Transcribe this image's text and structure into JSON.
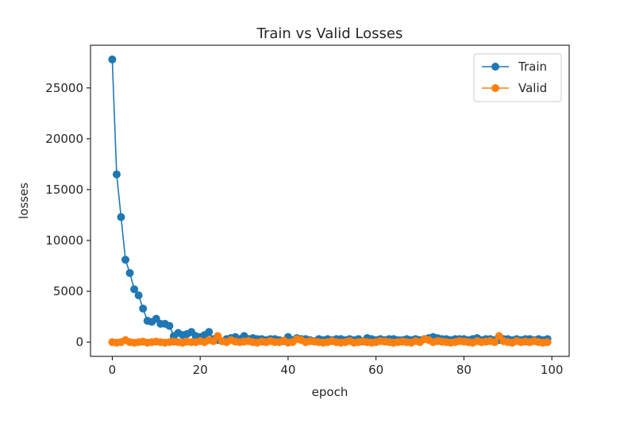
{
  "chart_data": {
    "type": "line",
    "title": "Train vs Valid Losses",
    "xlabel": "epoch",
    "ylabel": "losses",
    "xlim": [
      -4.95,
      103.95
    ],
    "ylim": [
      -1400,
      29200
    ],
    "xticks": [
      0,
      20,
      40,
      60,
      80,
      100
    ],
    "yticks": [
      0,
      5000,
      10000,
      15000,
      20000,
      25000
    ],
    "grid": false,
    "legend_position": "top-right",
    "x": [
      0,
      1,
      2,
      3,
      4,
      5,
      6,
      7,
      8,
      9,
      10,
      11,
      12,
      13,
      14,
      15,
      16,
      17,
      18,
      19,
      20,
      21,
      22,
      23,
      24,
      25,
      26,
      27,
      28,
      29,
      30,
      31,
      32,
      33,
      34,
      35,
      36,
      37,
      38,
      39,
      40,
      41,
      42,
      43,
      44,
      45,
      46,
      47,
      48,
      49,
      50,
      51,
      52,
      53,
      54,
      55,
      56,
      57,
      58,
      59,
      60,
      61,
      62,
      63,
      64,
      65,
      66,
      67,
      68,
      69,
      70,
      71,
      72,
      73,
      74,
      75,
      76,
      77,
      78,
      79,
      80,
      81,
      82,
      83,
      84,
      85,
      86,
      87,
      88,
      89,
      90,
      91,
      92,
      93,
      94,
      95,
      96,
      97,
      98,
      99
    ],
    "series": [
      {
        "name": "Train",
        "color": "#1f77b4",
        "values": [
          27800,
          16500,
          12300,
          8100,
          6800,
          5200,
          4600,
          3300,
          2100,
          2000,
          2300,
          1800,
          1800,
          1600,
          600,
          900,
          700,
          800,
          1000,
          600,
          500,
          700,
          1000,
          300,
          200,
          100,
          300,
          400,
          500,
          300,
          600,
          300,
          400,
          300,
          300,
          200,
          300,
          300,
          200,
          100,
          500,
          200,
          400,
          300,
          300,
          200,
          100,
          300,
          200,
          300,
          200,
          300,
          300,
          200,
          300,
          200,
          300,
          100,
          400,
          300,
          200,
          300,
          200,
          300,
          300,
          200,
          200,
          300,
          200,
          300,
          200,
          300,
          400,
          500,
          400,
          300,
          300,
          200,
          300,
          300,
          300,
          200,
          300,
          400,
          200,
          300,
          300,
          200,
          200,
          300,
          300,
          200,
          300,
          200,
          300,
          300,
          200,
          300,
          200,
          300
        ]
      },
      {
        "name": "Valid",
        "color": "#ff7f0e",
        "values": [
          0,
          -50,
          0,
          200,
          0,
          -50,
          0,
          50,
          -50,
          0,
          50,
          0,
          -50,
          0,
          50,
          0,
          -50,
          50,
          0,
          0,
          100,
          0,
          200,
          100,
          600,
          100,
          0,
          200,
          50,
          0,
          50,
          100,
          0,
          -50,
          50,
          0,
          100,
          0,
          0,
          150,
          -50,
          0,
          300,
          200,
          0,
          100,
          50,
          0,
          -50,
          0,
          100,
          0,
          -50,
          0,
          100,
          -50,
          0,
          50,
          0,
          -50,
          0,
          100,
          50,
          0,
          -50,
          0,
          50,
          0,
          -50,
          100,
          0,
          300,
          200,
          0,
          100,
          50,
          0,
          -50,
          0,
          100,
          50,
          0,
          -50,
          100,
          0,
          50,
          100,
          0,
          600,
          100,
          0,
          -50,
          100,
          0,
          50,
          0,
          100,
          0,
          -50,
          0
        ]
      }
    ]
  }
}
